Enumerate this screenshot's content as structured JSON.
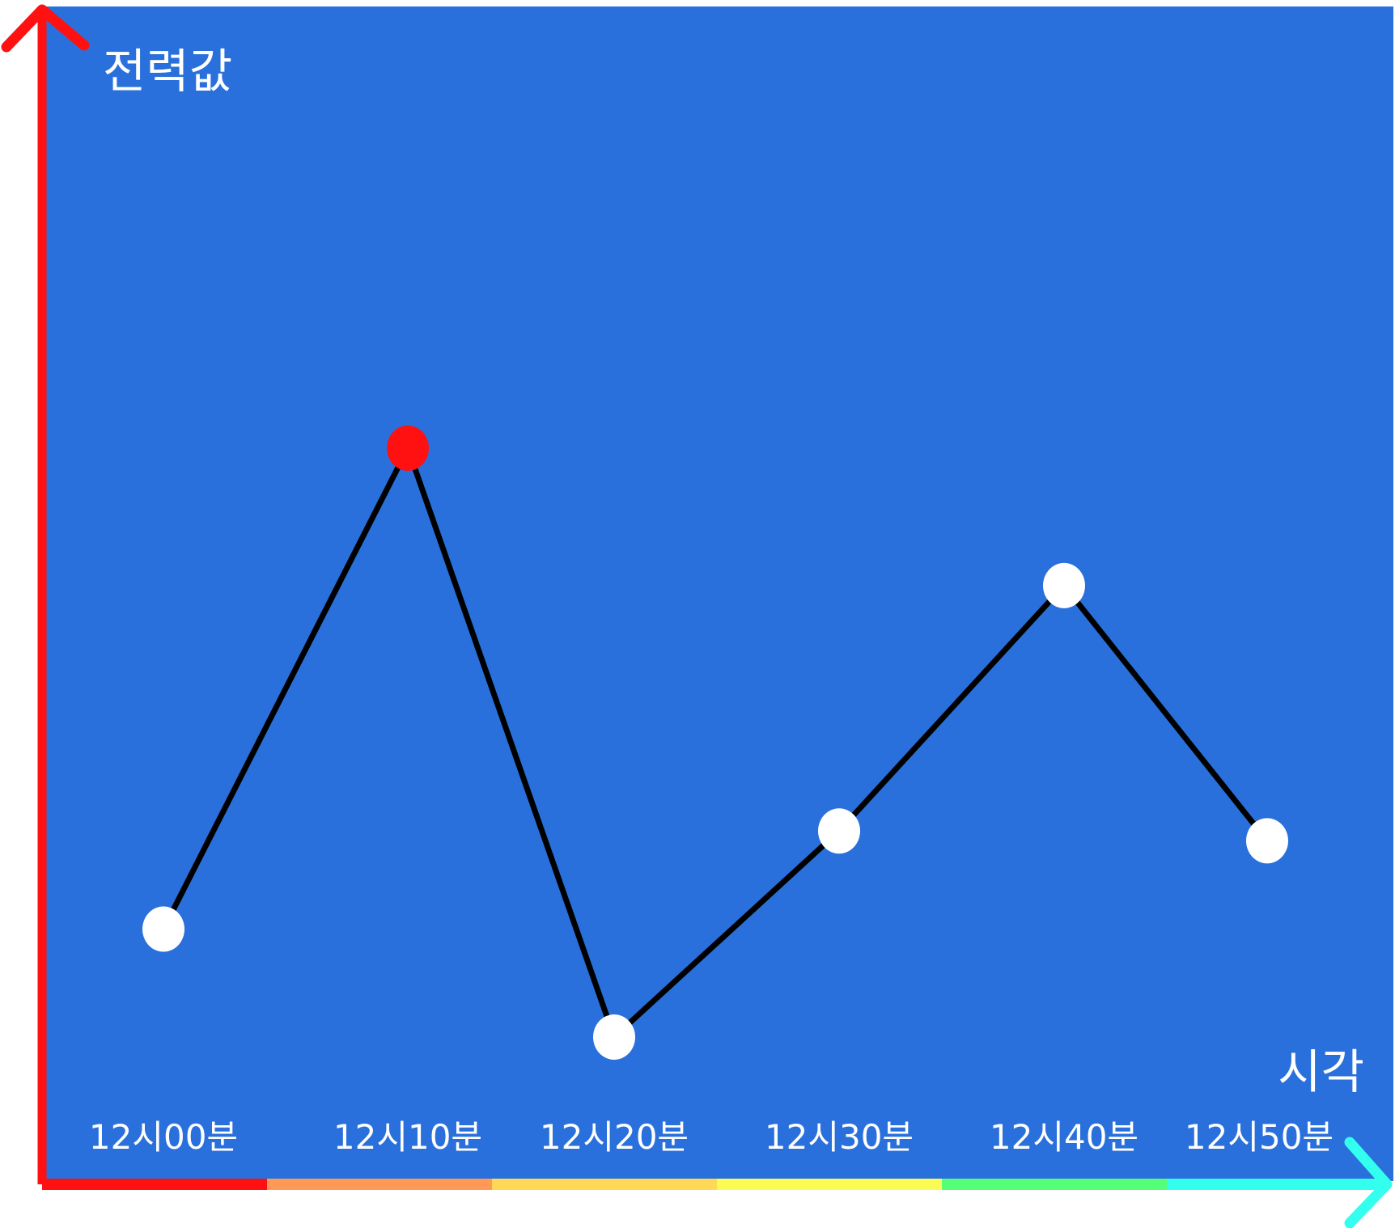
{
  "chart_data": {
    "type": "line",
    "title": "",
    "xlabel": "시각",
    "ylabel": "전력값",
    "categories": [
      "12시00분",
      "12시10분",
      "12시20분",
      "12시30분",
      "12시40분",
      "12시50분"
    ],
    "series": [
      {
        "values": [
          26,
          75,
          15,
          36,
          61,
          35
        ],
        "line_color": "#000000",
        "point_color": "#ffffff",
        "highlight_index": 1,
        "highlight_color": "#ff1111"
      }
    ],
    "ylim": [
      0,
      120
    ],
    "grid": false,
    "legend": "none",
    "background_color": "#2970dc",
    "y_axis_color": "#ff1111",
    "x_axis_segment_colors": [
      "#ff1111",
      "#ff9955",
      "#ffd955",
      "#fbfb55",
      "#55ff77",
      "#33ffee"
    ]
  }
}
